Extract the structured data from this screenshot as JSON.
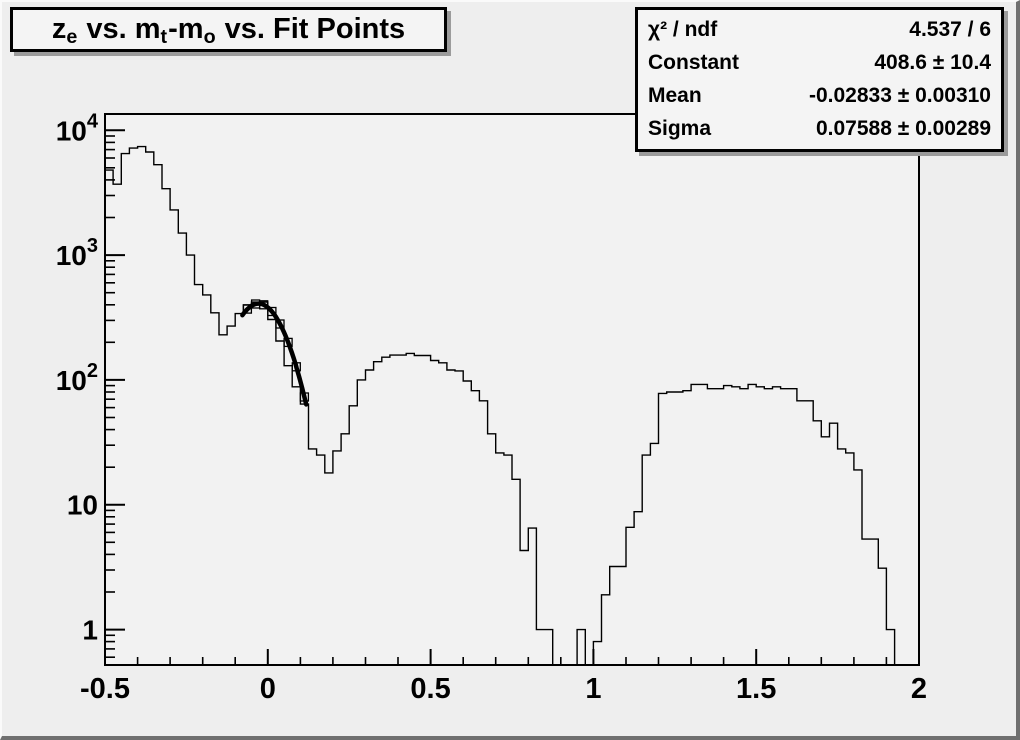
{
  "title_box": {
    "plain": "z_e vs. m_t-m_o vs. Fit Points",
    "segments": [
      {
        "text": "z"
      },
      {
        "text": "e",
        "sub": true
      },
      {
        "text": " vs. m"
      },
      {
        "text": "t",
        "sub": true
      },
      {
        "text": "-m"
      },
      {
        "text": "o",
        "sub": true
      },
      {
        "text": " vs. Fit Points"
      }
    ]
  },
  "stats_box": {
    "rows": [
      {
        "label": "χ² / ndf",
        "value": "4.537 / 6"
      },
      {
        "label": "Constant",
        "value": "408.6 ± 10.4"
      },
      {
        "label": "Mean",
        "value": "-0.02833 ± 0.00310"
      },
      {
        "label": "Sigma",
        "value": "0.07588 ± 0.00289"
      }
    ]
  },
  "chart_data": {
    "type": "bar",
    "subtype": "step-histogram",
    "title": "z_e vs. m_t-m_o vs. Fit Points",
    "xlabel": "",
    "ylabel": "",
    "x_scale": "linear",
    "y_scale": "log",
    "xlim": [
      -0.5,
      2.0
    ],
    "ylim": [
      0.52,
      13500
    ],
    "grid": false,
    "legend": "none",
    "x_start": -0.5,
    "bin_width": 0.025,
    "values": [
      4800,
      3700,
      6500,
      7200,
      7400,
      6700,
      5300,
      3400,
      2300,
      1500,
      1000,
      580,
      480,
      345,
      230,
      270,
      340,
      400,
      420,
      420,
      305,
      205,
      130,
      88,
      64,
      28,
      25,
      18,
      27,
      37,
      62,
      100,
      120,
      140,
      152,
      158,
      158,
      163,
      157,
      157,
      143,
      137,
      120,
      118,
      98,
      82,
      68,
      37,
      26,
      25,
      16,
      4.3,
      6.5,
      1,
      1,
      0,
      0,
      0,
      1,
      0,
      0.8,
      1.9,
      3.2,
      3.2,
      6.6,
      8.8,
      25,
      31,
      78,
      80,
      80,
      82,
      92,
      92,
      85,
      85,
      90,
      88,
      85,
      92,
      88,
      85,
      88,
      85,
      85,
      68,
      68,
      47,
      35,
      45,
      28,
      26,
      19,
      5.3,
      5.3,
      3.1,
      1,
      0,
      0,
      0
    ],
    "x_ticks": {
      "major": [
        {
          "v": -0.5,
          "label": "-0.5"
        },
        {
          "v": 0,
          "label": "0"
        },
        {
          "v": 0.5,
          "label": "0.5"
        },
        {
          "v": 1,
          "label": "1"
        },
        {
          "v": 1.5,
          "label": "1.5"
        },
        {
          "v": 2,
          "label": "2"
        }
      ],
      "minor_step": 0.1
    },
    "y_ticks": [
      {
        "v": 1,
        "mantissa": "1",
        "exp": ""
      },
      {
        "v": 10,
        "mantissa": "10",
        "exp": ""
      },
      {
        "v": 100,
        "mantissa": "10",
        "exp": "2"
      },
      {
        "v": 1000,
        "mantissa": "10",
        "exp": "3"
      },
      {
        "v": 10000,
        "mantissa": "10",
        "exp": "4"
      }
    ],
    "fit": {
      "type": "gaussian",
      "constant": 408.6,
      "mean": -0.02833,
      "sigma": 0.07588,
      "chi2": 4.537,
      "ndf": 6,
      "draw_range": [
        -0.078,
        0.118
      ],
      "points_x": [
        -0.0625,
        -0.0375,
        -0.0125,
        0.0125,
        0.0375,
        0.0625,
        0.0875,
        0.1125
      ],
      "line_width": 4.5
    },
    "colors": {
      "line": "#000000",
      "fit_line": "#000000",
      "frame_bg": "#f2f2f2",
      "canvas_bg": "#eeeeee",
      "box_bg": "#f4f4f4",
      "box_shadow": "#9b9b9b",
      "bevel_dark": "#6f6f6f"
    }
  }
}
